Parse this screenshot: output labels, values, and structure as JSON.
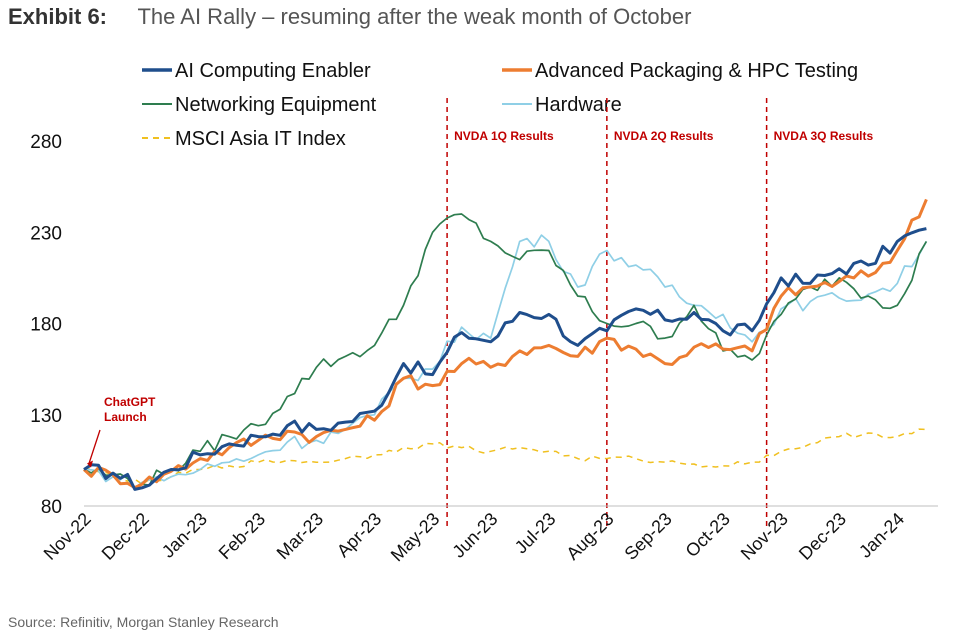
{
  "header": {
    "exhibit": "Exhibit 6:",
    "title": "The AI Rally – resuming after the weak month of October"
  },
  "source": "Source: Refinitiv, Morgan Stanley Research",
  "chart_data": {
    "type": "line",
    "title": "The AI Rally – resuming after the weak month of October",
    "xlabel": "",
    "ylabel": "",
    "ylim": [
      80,
      280
    ],
    "yticks": [
      80,
      130,
      180,
      230,
      280
    ],
    "x_tick_labels": [
      "Nov-22",
      "Dec-22",
      "Jan-23",
      "Feb-23",
      "Mar-23",
      "Apr-23",
      "May-23",
      "Jun-23",
      "Jul-23",
      "Aug-23",
      "Sep-23",
      "Oct-23",
      "Nov-23",
      "Dec-23",
      "Jan-24"
    ],
    "x_range_months": [
      0,
      14.7
    ],
    "legend_position": "top",
    "events": [
      {
        "label": "NVDA 1Q Results",
        "month": 6.25
      },
      {
        "label": "NVDA 2Q Results",
        "month": 9.0
      },
      {
        "label": "NVDA 3Q Results",
        "month": 11.75
      }
    ],
    "annotation": {
      "lines": [
        "ChatGPT",
        "Launch"
      ],
      "month": 0.0,
      "value": 100
    },
    "x": [
      0,
      0.5,
      1,
      1.5,
      2,
      2.5,
      3,
      3.5,
      4,
      4.5,
      5,
      5.5,
      6,
      6.5,
      7,
      7.5,
      8,
      8.5,
      9,
      9.5,
      10,
      10.5,
      11,
      11.5,
      12,
      12.5,
      13,
      13.5,
      14,
      14.5
    ],
    "series": [
      {
        "name": "AI Computing Enabler",
        "color": "#1f4e8c",
        "style": "solid-bold",
        "values": [
          100,
          98,
          90,
          100,
          108,
          114,
          118,
          124,
          122,
          126,
          132,
          158,
          152,
          175,
          170,
          186,
          185,
          168,
          176,
          188,
          182,
          186,
          176,
          176,
          205,
          202,
          210,
          212,
          225,
          232
        ]
      },
      {
        "name": "Advanced Packaging & HPC Testing",
        "color": "#ed7d31",
        "style": "solid-bold",
        "values": [
          100,
          97,
          92,
          99,
          106,
          112,
          116,
          121,
          118,
          122,
          127,
          150,
          146,
          158,
          156,
          165,
          168,
          162,
          172,
          166,
          158,
          167,
          166,
          165,
          195,
          200,
          203,
          206,
          220,
          248
        ]
      },
      {
        "name": "Networking Equipment",
        "color": "#2e7d4f",
        "style": "solid",
        "values": [
          100,
          97,
          92,
          100,
          110,
          118,
          124,
          140,
          156,
          162,
          168,
          190,
          230,
          240,
          225,
          215,
          220,
          195,
          180,
          180,
          172,
          190,
          165,
          160,
          185,
          200,
          205,
          195,
          190,
          225
        ]
      },
      {
        "name": "Hardware",
        "color": "#8fcfe6",
        "style": "solid",
        "values": [
          100,
          96,
          93,
          96,
          100,
          104,
          108,
          115,
          116,
          122,
          130,
          150,
          155,
          178,
          172,
          225,
          225,
          200,
          220,
          212,
          200,
          190,
          185,
          170,
          188,
          192,
          194,
          196,
          202,
          225
        ]
      },
      {
        "name": "MSCI Asia IT Index",
        "color": "#f0c020",
        "style": "dashed",
        "values": [
          100,
          97,
          92,
          96,
          100,
          102,
          104,
          105,
          104,
          106,
          108,
          112,
          114,
          112,
          110,
          112,
          110,
          106,
          106,
          106,
          104,
          103,
          102,
          104,
          110,
          114,
          118,
          120,
          118,
          122
        ]
      }
    ]
  }
}
